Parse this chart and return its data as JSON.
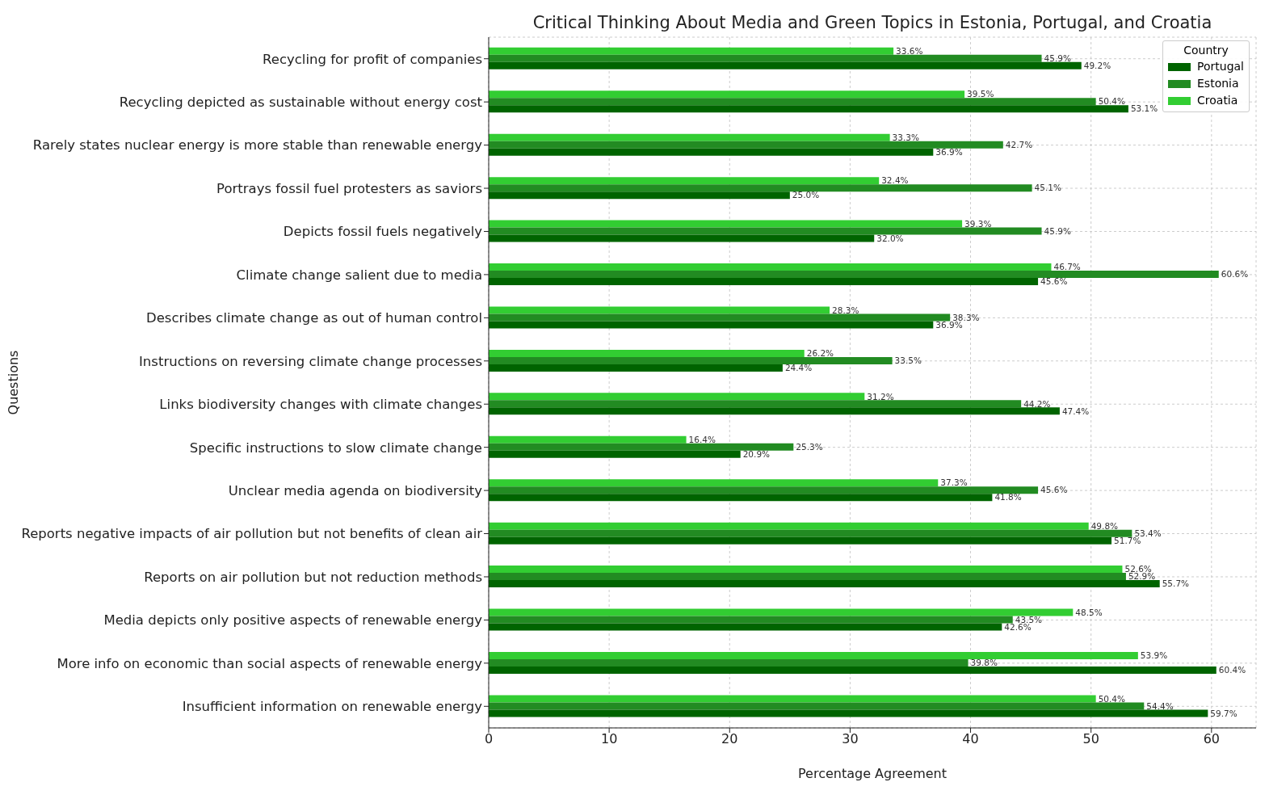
{
  "chart_data": {
    "type": "bar",
    "orientation": "horizontal",
    "title": "Critical Thinking About Media and Green Topics in Estonia, Portugal, and Croatia",
    "xlabel": "Percentage Agreement",
    "ylabel": "Questions",
    "legend_title": "Country",
    "legend": "top right",
    "grid": true,
    "categories": [
      "Recycling for profit of companies",
      "Recycling depicted as sustainable without energy cost",
      "Rarely states nuclear energy is more stable than renewable energy",
      "Portrays fossil fuel protesters as saviors",
      "Depicts fossil fuels negatively",
      "Climate change salient due to media",
      "Describes climate change as out of human control",
      "Instructions on reversing climate change processes",
      "Links biodiversity changes with climate changes",
      "Specific instructions to slow climate change",
      "Unclear media agenda on biodiversity",
      "Reports negative impacts of air pollution but not benefits of clean air",
      "Reports on air pollution but not reduction methods",
      "Media depicts only positive aspects of renewable energy",
      "More info on economic than social aspects of renewable energy",
      "Insufficient information on renewable energy"
    ],
    "xlim": [
      0,
      63.7
    ],
    "xticks": [
      0,
      10,
      20,
      30,
      40,
      50,
      60
    ],
    "series": [
      {
        "name": "Portugal",
        "color": "#006400",
        "values": [
          49.2,
          53.1,
          36.9,
          25.0,
          32.0,
          45.6,
          36.9,
          24.4,
          47.4,
          20.9,
          41.8,
          51.7,
          55.7,
          42.6,
          60.4,
          59.7
        ],
        "value_labels": [
          "49.2%",
          "53.1%",
          "36.9%",
          "25.0%",
          "32.0%",
          "45.6%",
          "36.9%",
          "24.4%",
          "47.4%",
          "20.9%",
          "41.8%",
          "51.7%",
          "55.7%",
          "42.6%",
          "60.4%",
          "59.7%"
        ]
      },
      {
        "name": "Estonia",
        "color": "#228b22",
        "values": [
          45.9,
          50.4,
          42.7,
          45.1,
          45.9,
          60.6,
          38.3,
          33.5,
          44.2,
          25.3,
          45.6,
          53.4,
          52.9,
          43.5,
          39.8,
          54.4
        ],
        "value_labels": [
          "45.9%",
          "50.4%",
          "42.7%",
          "45.1%",
          "45.9%",
          "60.6%",
          "38.3%",
          "33.5%",
          "44.2%",
          "25.3%",
          "45.6%",
          "53.4%",
          "52.9%",
          "43.5%",
          "39.8%",
          "54.4%"
        ]
      },
      {
        "name": "Croatia",
        "color": "#32cd32",
        "values": [
          33.6,
          39.5,
          33.3,
          32.4,
          39.3,
          46.7,
          28.3,
          26.2,
          31.2,
          16.4,
          37.3,
          49.8,
          52.6,
          48.5,
          53.9,
          50.4
        ],
        "value_labels": [
          "33.6%",
          "39.5%",
          "33.3%",
          "32.4%",
          "39.3%",
          "46.7%",
          "28.3%",
          "26.2%",
          "31.2%",
          "16.4%",
          "37.3%",
          "49.8%",
          "52.6%",
          "48.5%",
          "53.9%",
          "50.4%"
        ]
      }
    ]
  }
}
